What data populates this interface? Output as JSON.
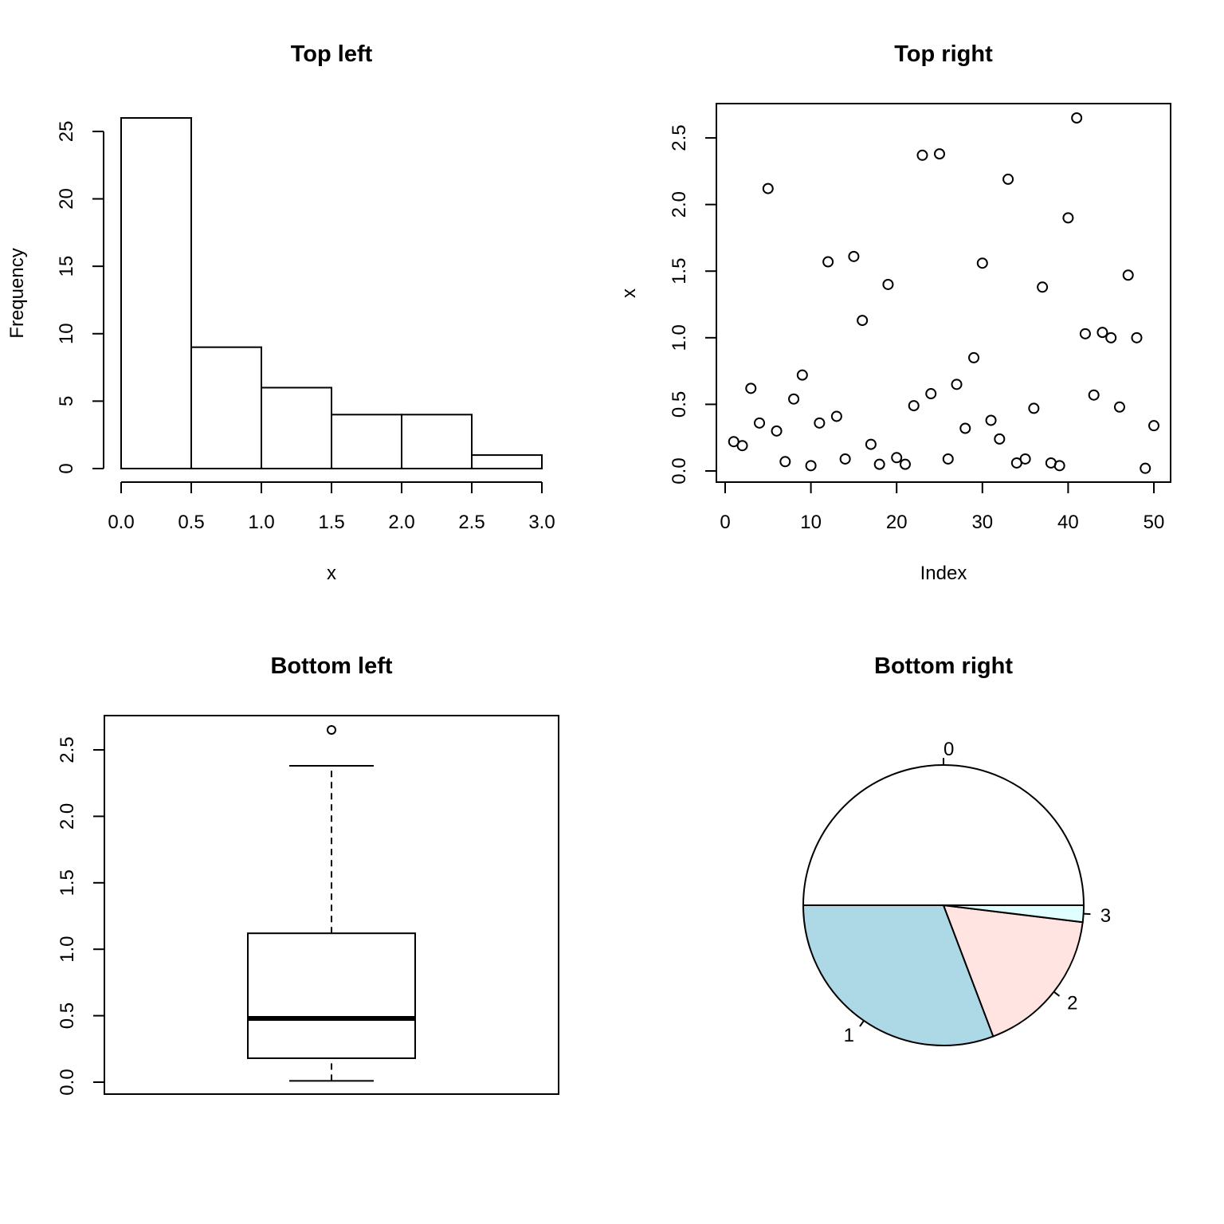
{
  "chart_data": [
    {
      "type": "bar",
      "subtype": "histogram",
      "title": "Top left",
      "xlabel": "x",
      "ylabel": "Frequency",
      "bins": [
        [
          0.0,
          0.5
        ],
        [
          0.5,
          1.0
        ],
        [
          1.0,
          1.5
        ],
        [
          1.5,
          2.0
        ],
        [
          2.0,
          2.5
        ],
        [
          2.5,
          3.0
        ]
      ],
      "values": [
        26,
        9,
        6,
        4,
        4,
        1
      ],
      "xlim": [
        0,
        3
      ],
      "ylim": [
        0,
        26
      ],
      "xticks": [
        "0.0",
        "0.5",
        "1.0",
        "1.5",
        "2.0",
        "2.5",
        "3.0"
      ],
      "yticks": [
        "0",
        "5",
        "10",
        "15",
        "20",
        "25"
      ]
    },
    {
      "type": "scatter",
      "title": "Top right",
      "xlabel": "Index",
      "ylabel": "x",
      "x": [
        1,
        2,
        3,
        4,
        5,
        6,
        7,
        8,
        9,
        10,
        11,
        12,
        13,
        14,
        15,
        16,
        17,
        18,
        19,
        20,
        21,
        22,
        23,
        24,
        25,
        26,
        27,
        28,
        29,
        30,
        31,
        32,
        33,
        34,
        35,
        36,
        37,
        38,
        39,
        40,
        41,
        42,
        43,
        44,
        45,
        46,
        47,
        48,
        49,
        50
      ],
      "y": [
        0.22,
        0.19,
        0.62,
        0.36,
        2.12,
        0.3,
        0.07,
        0.54,
        0.72,
        0.04,
        0.36,
        1.57,
        0.41,
        0.09,
        1.61,
        1.13,
        0.2,
        0.05,
        1.4,
        0.1,
        0.05,
        0.49,
        2.37,
        0.58,
        2.38,
        0.09,
        0.65,
        0.32,
        0.85,
        1.56,
        0.38,
        0.24,
        2.19,
        0.06,
        0.09,
        0.47,
        1.38,
        0.06,
        0.04,
        1.9,
        2.65,
        1.03,
        0.57,
        1.04,
        1.0,
        0.48,
        1.47,
        1.0,
        0.02,
        0.34
      ],
      "xlim": [
        0,
        50
      ],
      "ylim": [
        0,
        2.65
      ],
      "xticks": [
        "0",
        "10",
        "20",
        "30",
        "40",
        "50"
      ],
      "yticks": [
        "0.0",
        "0.5",
        "1.0",
        "1.5",
        "2.0",
        "2.5"
      ]
    },
    {
      "type": "box",
      "title": "Bottom left",
      "whisker_low": 0.01,
      "q1": 0.18,
      "median": 0.48,
      "q3": 1.12,
      "whisker_high": 2.38,
      "outliers": [
        2.65
      ],
      "ylim": [
        0,
        2.65
      ],
      "yticks": [
        "0.0",
        "0.5",
        "1.0",
        "1.5",
        "2.0",
        "2.5"
      ]
    },
    {
      "type": "pie",
      "title": "Bottom right",
      "labels": [
        "0",
        "1",
        "2",
        "3"
      ],
      "values": [
        26,
        16,
        9,
        1
      ],
      "colors": [
        "#ffffff",
        "#add8e6",
        "#ffe4e1",
        "#e0ffff"
      ]
    }
  ]
}
